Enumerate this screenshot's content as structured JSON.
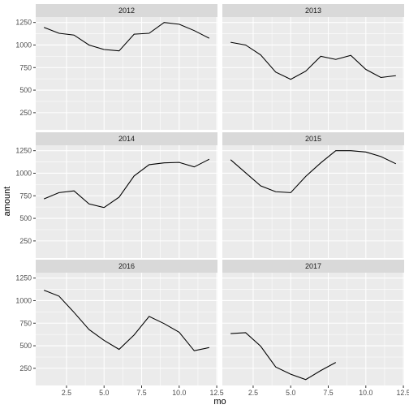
{
  "chart_data": {
    "type": "line",
    "layout": "facet_wrap",
    "xlabel": "mo",
    "ylabel": "amount",
    "xlim": [
      0.45,
      12.55
    ],
    "ylim": [
      60,
      1310
    ],
    "x_ticks": [
      2.5,
      5.0,
      7.5,
      10.0,
      12.5
    ],
    "x_tick_labels": [
      "2.5",
      "5.0",
      "7.5",
      "10.0",
      "12.5"
    ],
    "y_ticks": [
      250,
      500,
      750,
      1000,
      1250
    ],
    "y_tick_labels": [
      "250",
      "500",
      "750",
      "1000",
      "1250"
    ],
    "grid": true,
    "legend": "none",
    "colors": {
      "line": "#000000",
      "panel": "#ebebeb",
      "strip": "#d9d9d9",
      "grid": "#ffffff"
    },
    "panels": [
      {
        "name": "2012",
        "x": [
          1,
          2,
          3,
          4,
          5,
          6,
          7,
          8,
          9,
          10,
          11,
          12
        ],
        "y": [
          1195,
          1130,
          1110,
          1000,
          950,
          935,
          1120,
          1130,
          1250,
          1230,
          1160,
          1075
        ]
      },
      {
        "name": "2013",
        "x": [
          1,
          2,
          3,
          4,
          5,
          6,
          7,
          8,
          9,
          10,
          11,
          12
        ],
        "y": [
          1030,
          1000,
          890,
          700,
          620,
          710,
          875,
          840,
          885,
          730,
          640,
          660
        ]
      },
      {
        "name": "2014",
        "x": [
          1,
          2,
          3,
          4,
          5,
          6,
          7,
          8,
          9,
          10,
          11,
          12
        ],
        "y": [
          715,
          785,
          805,
          660,
          620,
          735,
          970,
          1095,
          1115,
          1120,
          1070,
          1155
        ]
      },
      {
        "name": "2015",
        "x": [
          1,
          2,
          3,
          4,
          5,
          6,
          7,
          8,
          9,
          10,
          11,
          12
        ],
        "y": [
          1150,
          1005,
          860,
          795,
          785,
          965,
          1115,
          1250,
          1250,
          1235,
          1185,
          1105
        ]
      },
      {
        "name": "2016",
        "x": [
          1,
          2,
          3,
          4,
          5,
          6,
          7,
          8,
          9,
          10,
          11,
          12
        ],
        "y": [
          1115,
          1050,
          870,
          680,
          560,
          460,
          620,
          825,
          745,
          650,
          445,
          480
        ]
      },
      {
        "name": "2017",
        "x": [
          1,
          2,
          3,
          4,
          5,
          6,
          7,
          8
        ],
        "y": [
          635,
          645,
          495,
          265,
          185,
          125,
          225,
          315
        ]
      }
    ]
  }
}
